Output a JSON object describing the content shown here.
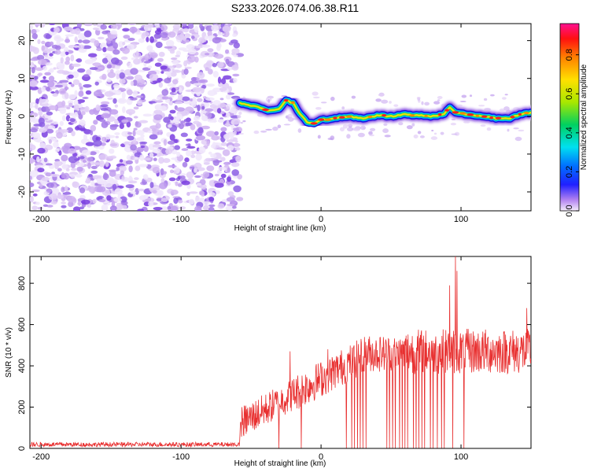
{
  "title": "S233.2026.074.06.38.R11",
  "chart_data": [
    {
      "type": "heatmap",
      "xlabel": "Height of straight line (km)",
      "ylabel": "Frequency (Hz)",
      "xlim": [
        -208,
        150
      ],
      "ylim": [
        -25,
        24.5
      ],
      "xticks": [
        -200,
        -100,
        0,
        100
      ],
      "yticks": [
        -20,
        -10,
        0,
        10,
        20
      ],
      "noise_region_x": [
        -208,
        -58
      ],
      "ridge": [
        {
          "x": -58,
          "y": 3.5
        },
        {
          "x": -52,
          "y": 3.0
        },
        {
          "x": -45,
          "y": 2.5
        },
        {
          "x": -38,
          "y": 1.5
        },
        {
          "x": -30,
          "y": 2.0
        },
        {
          "x": -25,
          "y": 4.2
        },
        {
          "x": -20,
          "y": 3.5
        },
        {
          "x": -15,
          "y": 0.5
        },
        {
          "x": -10,
          "y": -1.5
        },
        {
          "x": -5,
          "y": -2.0
        },
        {
          "x": 0,
          "y": -1.0
        },
        {
          "x": 10,
          "y": -0.5
        },
        {
          "x": 20,
          "y": 0.0
        },
        {
          "x": 30,
          "y": -0.5
        },
        {
          "x": 40,
          "y": 0.2
        },
        {
          "x": 50,
          "y": 0.0
        },
        {
          "x": 60,
          "y": 0.5
        },
        {
          "x": 70,
          "y": 0.2
        },
        {
          "x": 80,
          "y": 0.0
        },
        {
          "x": 88,
          "y": 0.5
        },
        {
          "x": 92,
          "y": 2.5
        },
        {
          "x": 96,
          "y": 1.0
        },
        {
          "x": 105,
          "y": 0.5
        },
        {
          "x": 115,
          "y": 0.0
        },
        {
          "x": 125,
          "y": -0.5
        },
        {
          "x": 135,
          "y": -0.5
        },
        {
          "x": 142,
          "y": 0.5
        },
        {
          "x": 150,
          "y": 1.0
        }
      ],
      "colorbar": {
        "label": "Normalized spectral amplitude",
        "ticks": [
          0.0,
          0.2,
          0.4,
          0.6,
          0.8
        ],
        "range": [
          0,
          0.96
        ]
      }
    },
    {
      "type": "line",
      "xlabel": "Height of straight line (km)",
      "ylabel": "SNR (10 * v/v)",
      "xlim": [
        -208,
        150
      ],
      "ylim": [
        0,
        930
      ],
      "xticks": [
        -200,
        -100,
        0,
        100
      ],
      "yticks": [
        0,
        200,
        400,
        600,
        800
      ],
      "color": "#e83030",
      "series": [
        {
          "segments": [
            {
              "x0": -208,
              "x1": -58,
              "mean": 15,
              "jitter": 12
            },
            {
              "x0": -58,
              "x1": -20,
              "mean": 180,
              "jitter": 80
            },
            {
              "x0": -20,
              "x1": 20,
              "mean": 320,
              "jitter": 90
            },
            {
              "x0": 20,
              "x1": 60,
              "mean": 460,
              "jitter": 90
            },
            {
              "x0": 60,
              "x1": 150,
              "mean": 470,
              "jitter": 110
            }
          ],
          "spikes_up": [
            {
              "x": -22,
              "y": 470
            },
            {
              "x": 5,
              "y": 480
            },
            {
              "x": 92,
              "y": 790
            },
            {
              "x": 96,
              "y": 930
            },
            {
              "x": 97,
              "y": 860
            },
            {
              "x": 147,
              "y": 680
            }
          ],
          "drops": [
            -30,
            -14,
            18,
            22,
            24,
            26,
            28,
            30,
            32,
            47,
            49,
            51,
            53,
            56,
            58,
            60,
            62,
            66,
            68,
            70,
            72,
            74,
            78,
            80,
            83,
            86,
            88,
            94,
            102
          ]
        }
      ]
    }
  ]
}
